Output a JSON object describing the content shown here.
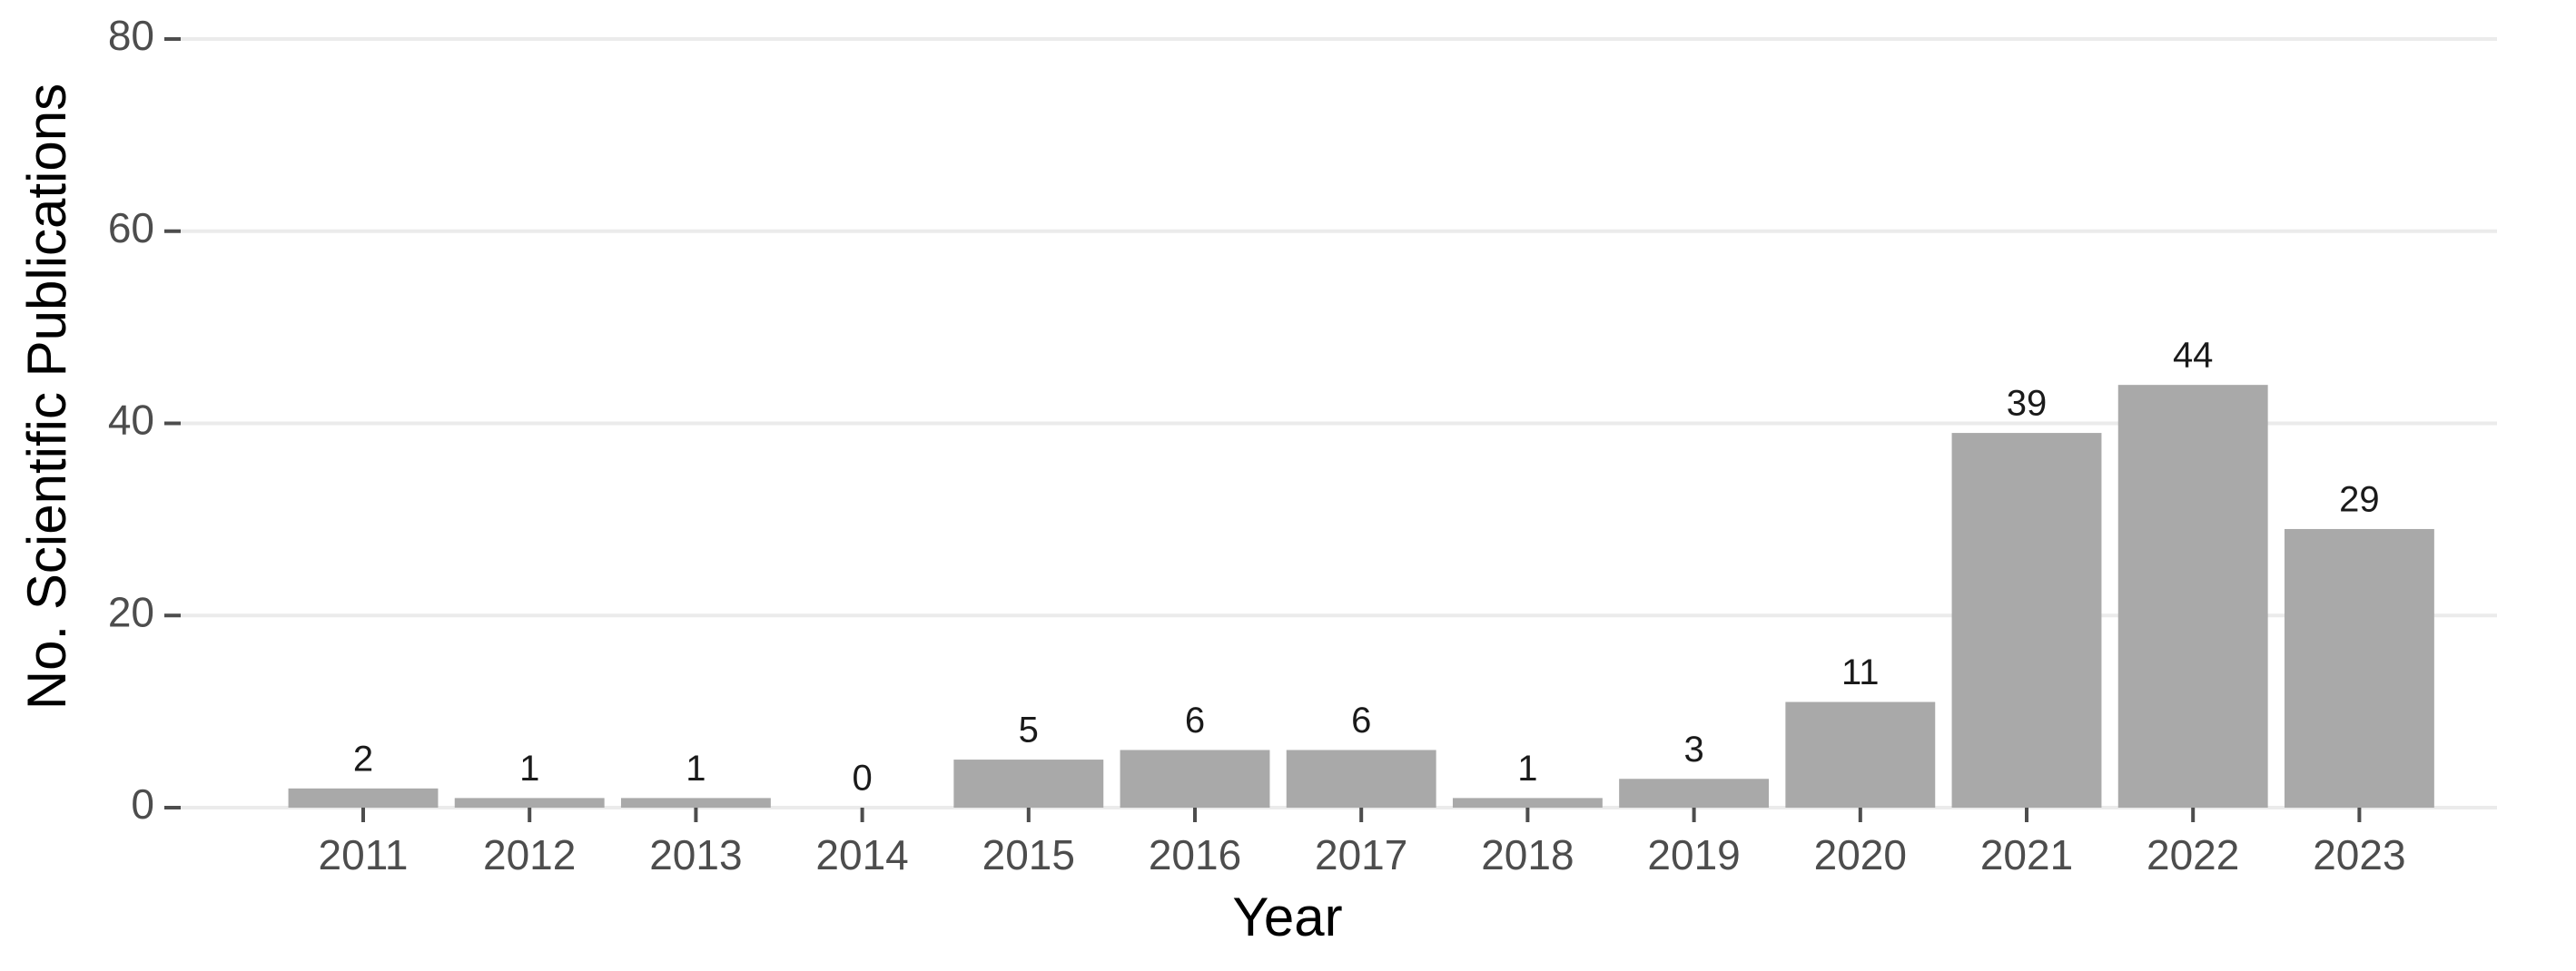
{
  "chart_data": {
    "type": "bar",
    "x_label": "Year",
    "y_label": "No. Scientific Publications",
    "categories": [
      "2011",
      "2012",
      "2013",
      "2014",
      "2015",
      "2016",
      "2017",
      "2018",
      "2019",
      "2020",
      "2021",
      "2022",
      "2023"
    ],
    "values": [
      2,
      1,
      1,
      0,
      5,
      6,
      6,
      1,
      3,
      11,
      39,
      44,
      29
    ],
    "color": "#a9a9a9",
    "ylim": [
      0,
      80
    ],
    "yticks": [
      0,
      20,
      40,
      60,
      80
    ],
    "grid": true,
    "data_labels": true
  }
}
